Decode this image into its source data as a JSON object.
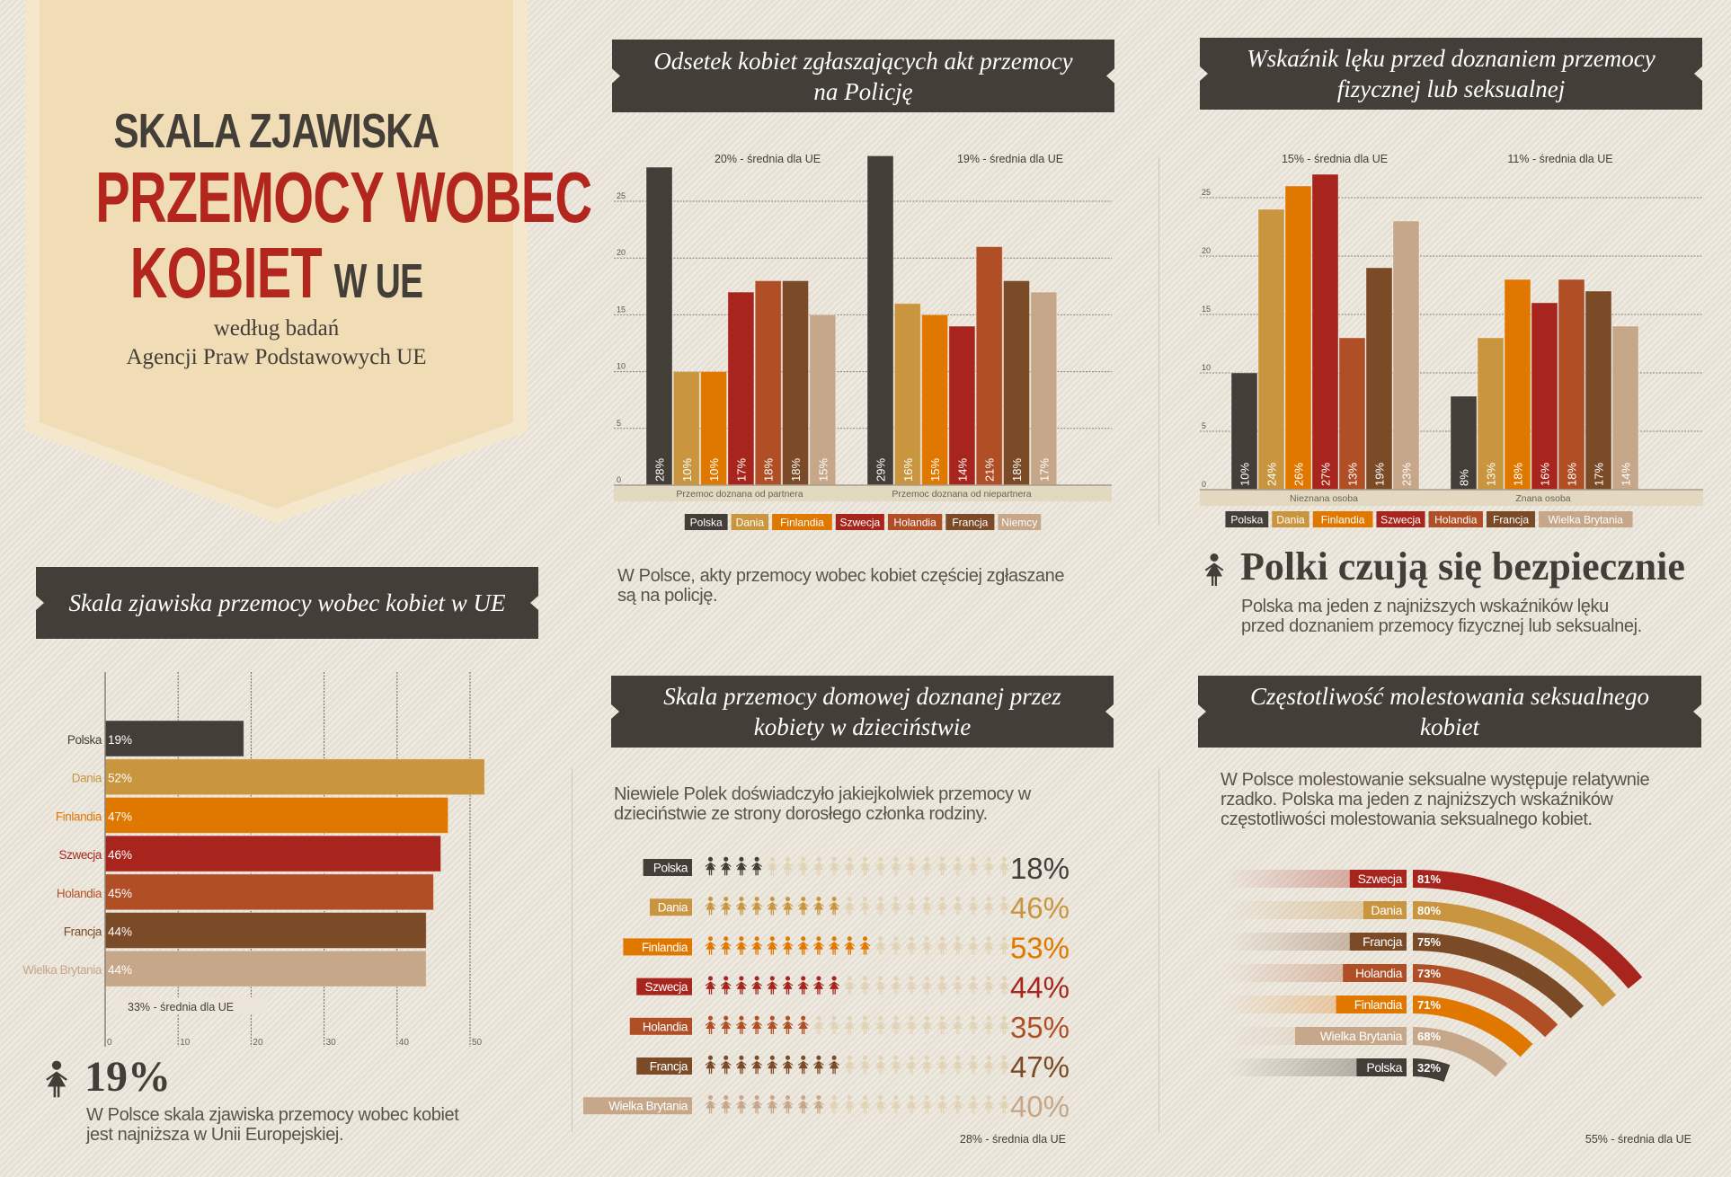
{
  "colors": {
    "Polska": "#433e38",
    "Dania": "#c9963f",
    "Finlandia": "#e07800",
    "Szwecja": "#a8251d",
    "Holandia": "#b04f26",
    "Francja": "#7b4a27",
    "Niemcy": "#c6a78a",
    "Wielka Brytania": "#c6a78a",
    "empty_icon": "#e2d3b6",
    "title_red": "#b2261d",
    "banner": "#f0dcb5"
  },
  "banner": {
    "line1": "SKALA ZJAWISKA",
    "line2": "PRZEMOCY WOBEC",
    "line3a": "KOBIET",
    "line3b": "W UE",
    "sub1": "według badań",
    "sub2": "Agencji Praw Podstawowych UE"
  },
  "sections": {
    "reporting": {
      "title": "Odsetek kobiet zgłaszających akt przemocy na Policję",
      "note": "W Polsce, akty przemocy wobec kobiet częściej zgłaszane są na policję."
    },
    "fear": {
      "title": "Wskaźnik lęku przed doznaniem przemocy fizycznej lub seksualnej",
      "heading": "Polki czują się bezpiecznie",
      "note": "Polska ma jeden z najniższych wskaźników lęku przed doznaniem przemocy fizycznej lub seksualnej.",
      "icon": "woman-icon"
    },
    "scale": {
      "title": "Skala zjawiska przemocy wobec kobiet w UE",
      "big_value": "19%",
      "note": "W Polsce skala zjawiska przemocy wobec kobiet jest najniższa w Unii Europejskiej.",
      "icon": "woman-icon"
    },
    "childhood": {
      "title": "Skala przemocy domowej doznanej przez kobiety w dzieciństwie",
      "note": "Niewiele Polek doświadczyło jakiejkolwiek przemocy w dzieciństwie ze strony dorosłego członka rodziny."
    },
    "harassment": {
      "title": "Częstotliwość molestowania seksualnego kobiet",
      "note": "W Polsce molestowanie seksualne występuje relatywnie rzadko. Polska ma jeden z najniższych wskaźników częstotliwości molestowania seksualnego kobiet."
    }
  },
  "chart_data": [
    {
      "id": "reporting",
      "type": "bar",
      "series_names": [
        "Polska",
        "Dania",
        "Finlandia",
        "Szwecja",
        "Holandia",
        "Francja",
        "Niemcy"
      ],
      "groups": [
        {
          "label": "Przemoc doznana od partnera",
          "avg": "20% - średnia dla UE",
          "values": [
            28,
            10,
            10,
            17,
            18,
            18,
            15
          ]
        },
        {
          "label": "Przemoc doznana od niepartnera",
          "avg": "19% - średnia dla UE",
          "values": [
            29,
            16,
            15,
            14,
            21,
            18,
            17
          ]
        }
      ],
      "yticks": [
        0,
        5,
        10,
        15,
        20,
        25
      ],
      "ylim": [
        0,
        30
      ],
      "grid": true,
      "legend": "bottom"
    },
    {
      "id": "fear",
      "type": "bar",
      "series_names": [
        "Polska",
        "Dania",
        "Finlandia",
        "Szwecja",
        "Holandia",
        "Francja",
        "Wielka Brytania"
      ],
      "groups": [
        {
          "label": "Nieznana osoba",
          "avg": "15% - średnia dla UE",
          "values": [
            10,
            24,
            26,
            27,
            13,
            19,
            23
          ]
        },
        {
          "label": "Znana osoba",
          "avg": "11% - średnia dla UE",
          "values": [
            8,
            13,
            18,
            16,
            18,
            17,
            14
          ]
        }
      ],
      "yticks": [
        0,
        5,
        10,
        15,
        20,
        25
      ],
      "ylim": [
        0,
        28
      ],
      "grid": true,
      "legend": "bottom"
    },
    {
      "id": "scale",
      "type": "bar",
      "orientation": "horizontal",
      "categories": [
        "Polska",
        "Dania",
        "Finlandia",
        "Szwecja",
        "Holandia",
        "Francja",
        "Wielka Brytania"
      ],
      "values": [
        19,
        52,
        47,
        46,
        45,
        44,
        44
      ],
      "xticks": [
        0,
        10,
        20,
        30,
        40,
        50
      ],
      "xlim": [
        0,
        52
      ],
      "grid": true,
      "avg": "33% - średnia dla UE"
    },
    {
      "id": "childhood",
      "type": "pictogram",
      "categories": [
        "Polska",
        "Dania",
        "Finlandia",
        "Szwecja",
        "Holandia",
        "Francja",
        "Wielka Brytania"
      ],
      "values": [
        18,
        46,
        53,
        44,
        35,
        47,
        40
      ],
      "icons_per_row": 20,
      "avg": "28% - średnia dla UE"
    },
    {
      "id": "harassment",
      "type": "radial-bar",
      "categories": [
        "Szwecja",
        "Dania",
        "Francja",
        "Holandia",
        "Finlandia",
        "Wielka Brytania",
        "Polska"
      ],
      "values": [
        81,
        80,
        75,
        73,
        71,
        68,
        32
      ],
      "avg": "55% - średnia dla UE"
    }
  ]
}
